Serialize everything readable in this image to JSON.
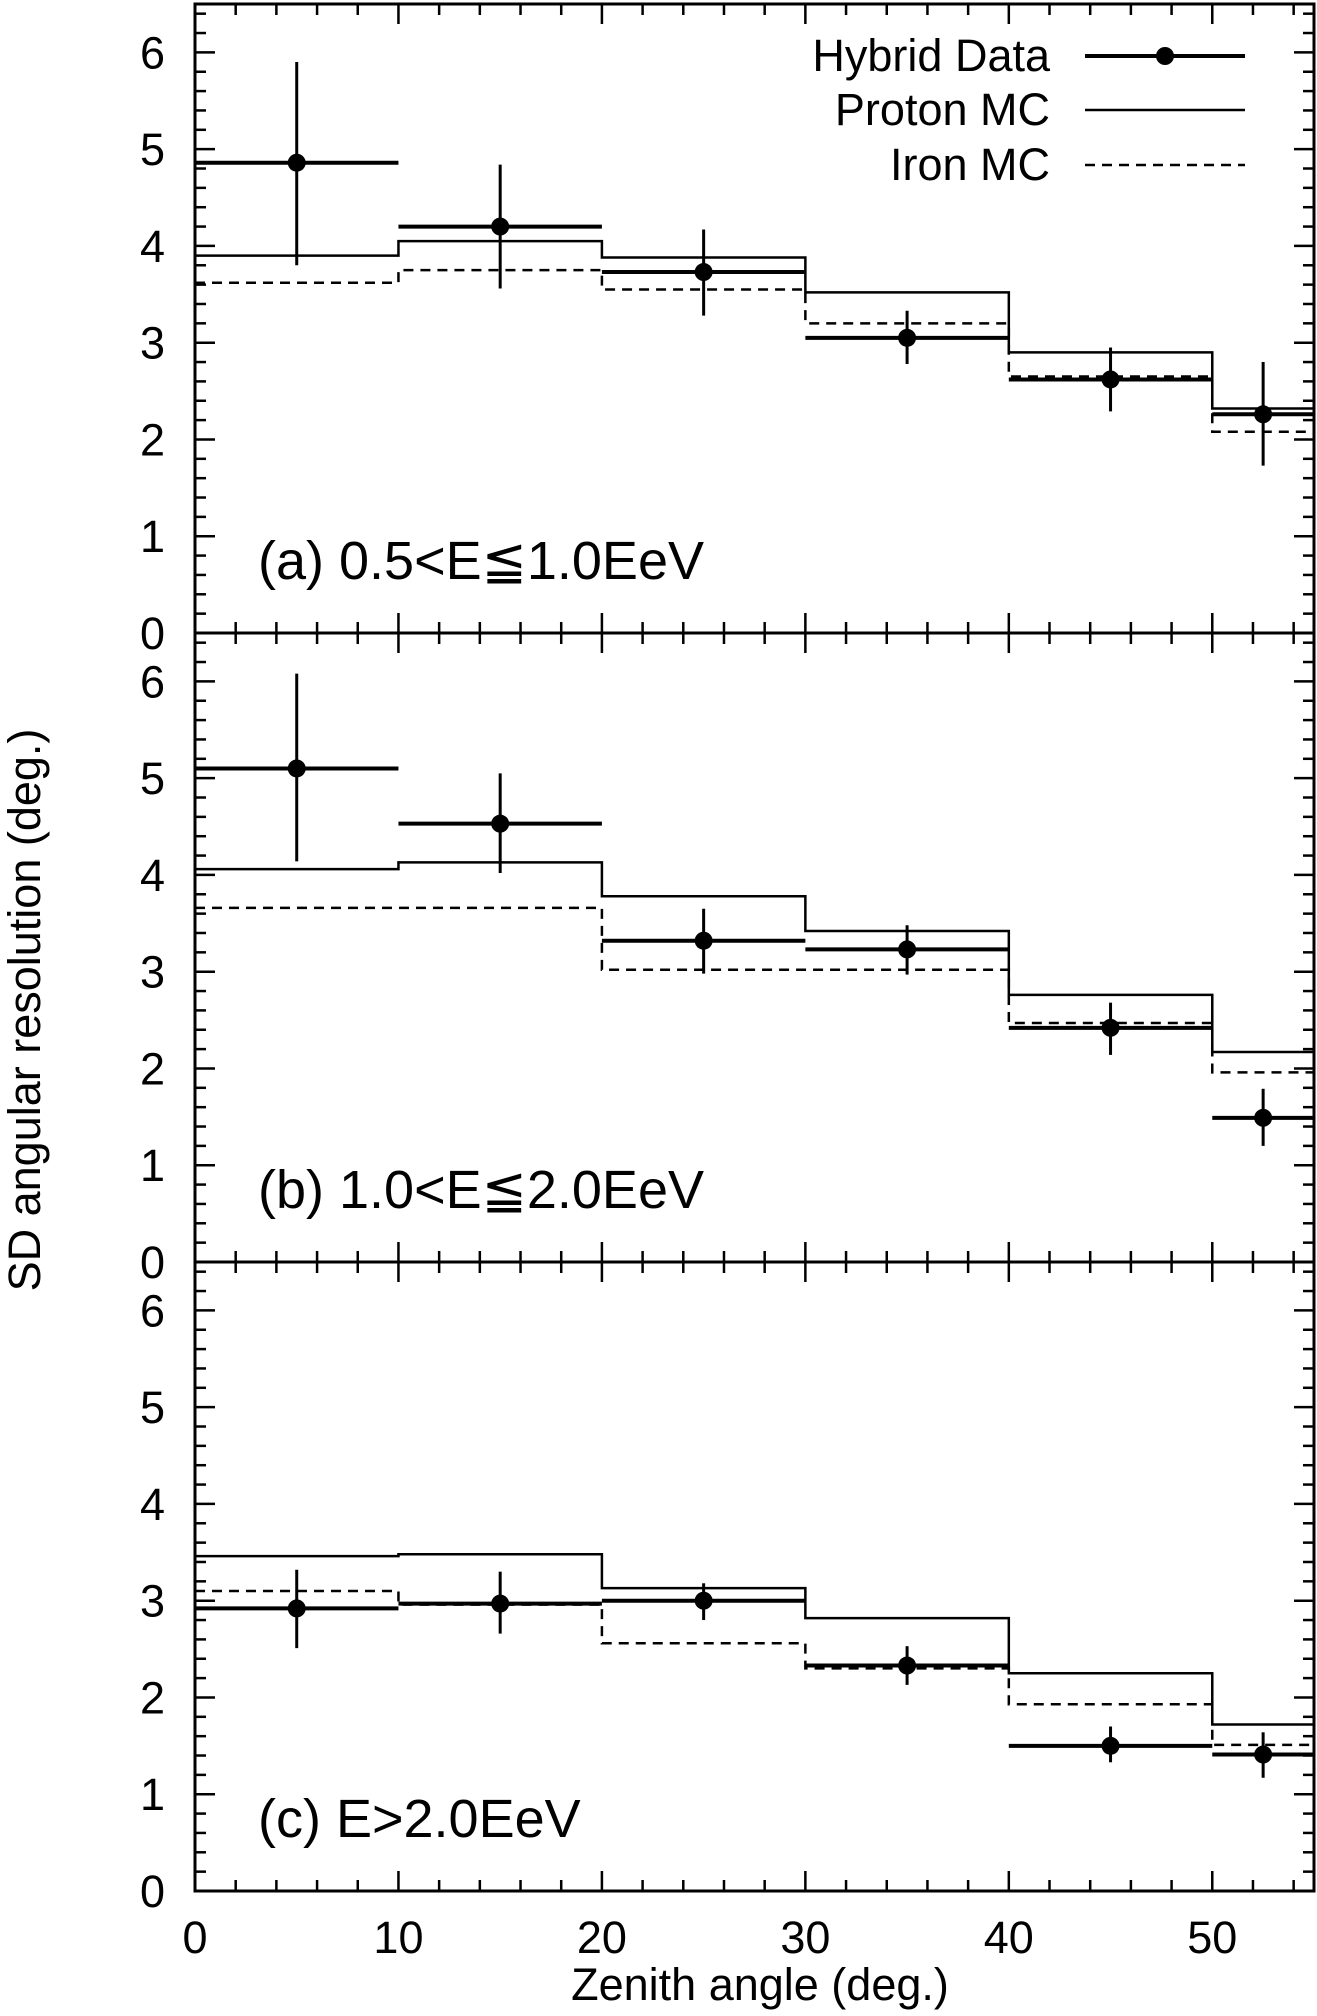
{
  "chart_data": {
    "type": "step-histogram",
    "xlabel": "Zenith angle (deg.)",
    "ylabel": "SD angular resolution (deg.)",
    "xlim": [
      0,
      55
    ],
    "ylim": [
      0,
      6.5
    ],
    "x_ticks": [
      0,
      10,
      20,
      30,
      40,
      50
    ],
    "y_ticks": [
      0,
      1,
      2,
      3,
      4,
      5,
      6
    ],
    "legend": {
      "position": "top-right of top panel",
      "entries": [
        {
          "key": "data",
          "label": "Hybrid Data",
          "style": "points with thick error bars"
        },
        {
          "key": "proton",
          "label": "Proton MC",
          "style": "solid line"
        },
        {
          "key": "iron",
          "label": "Iron MC",
          "style": "dashed line"
        }
      ]
    },
    "bin_edges": [
      0,
      10,
      20,
      30,
      40,
      50,
      55
    ],
    "panels": [
      {
        "label": "(a) 0.5<E≦1.0EeV",
        "proton_mc": [
          3.9,
          4.05,
          3.88,
          3.52,
          2.9,
          2.32
        ],
        "iron_mc": [
          3.62,
          3.75,
          3.55,
          3.2,
          2.65,
          2.08
        ],
        "data": [
          {
            "x": 5,
            "xerr": 5,
            "y": 4.86,
            "ylow": 3.8,
            "yhigh": 5.9
          },
          {
            "x": 15,
            "xerr": 5,
            "y": 4.2,
            "ylow": 3.56,
            "yhigh": 4.84
          },
          {
            "x": 25,
            "xerr": 5,
            "y": 3.73,
            "ylow": 3.28,
            "yhigh": 4.17
          },
          {
            "x": 35,
            "xerr": 5,
            "y": 3.05,
            "ylow": 2.78,
            "yhigh": 3.33
          },
          {
            "x": 45,
            "xerr": 5,
            "y": 2.62,
            "ylow": 2.29,
            "yhigh": 2.95
          },
          {
            "x": 52.5,
            "xerr": 2.5,
            "y": 2.26,
            "ylow": 1.73,
            "yhigh": 2.8
          }
        ]
      },
      {
        "label": "(b) 1.0<E≦2.0EeV",
        "proton_mc": [
          4.06,
          4.13,
          3.78,
          3.42,
          2.76,
          2.17
        ],
        "iron_mc": [
          3.66,
          3.66,
          3.02,
          3.02,
          2.47,
          1.96
        ],
        "data": [
          {
            "x": 5,
            "xerr": 5,
            "y": 5.1,
            "ylow": 4.14,
            "yhigh": 6.08
          },
          {
            "x": 15,
            "xerr": 5,
            "y": 4.53,
            "ylow": 4.02,
            "yhigh": 5.05
          },
          {
            "x": 25,
            "xerr": 5,
            "y": 3.32,
            "ylow": 2.98,
            "yhigh": 3.65
          },
          {
            "x": 35,
            "xerr": 5,
            "y": 3.23,
            "ylow": 2.97,
            "yhigh": 3.48
          },
          {
            "x": 45,
            "xerr": 5,
            "y": 2.42,
            "ylow": 2.14,
            "yhigh": 2.68
          },
          {
            "x": 52.5,
            "xerr": 2.5,
            "y": 1.49,
            "ylow": 1.2,
            "yhigh": 1.79
          }
        ]
      },
      {
        "label": "(c) E>2.0EeV",
        "proton_mc": [
          3.46,
          3.48,
          3.13,
          2.82,
          2.25,
          1.72
        ],
        "iron_mc": [
          3.1,
          2.96,
          2.56,
          2.3,
          1.93,
          1.51
        ],
        "data": [
          {
            "x": 5,
            "xerr": 5,
            "y": 2.92,
            "ylow": 2.51,
            "yhigh": 3.32
          },
          {
            "x": 15,
            "xerr": 5,
            "y": 2.97,
            "ylow": 2.66,
            "yhigh": 3.3
          },
          {
            "x": 25,
            "xerr": 5,
            "y": 3.0,
            "ylow": 2.8,
            "yhigh": 3.18
          },
          {
            "x": 35,
            "xerr": 5,
            "y": 2.33,
            "ylow": 2.13,
            "yhigh": 2.53
          },
          {
            "x": 45,
            "xerr": 5,
            "y": 1.5,
            "ylow": 1.33,
            "yhigh": 1.7
          },
          {
            "x": 52.5,
            "xerr": 2.5,
            "y": 1.41,
            "ylow": 1.17,
            "yhigh": 1.64
          }
        ]
      }
    ],
    "grid": false
  }
}
